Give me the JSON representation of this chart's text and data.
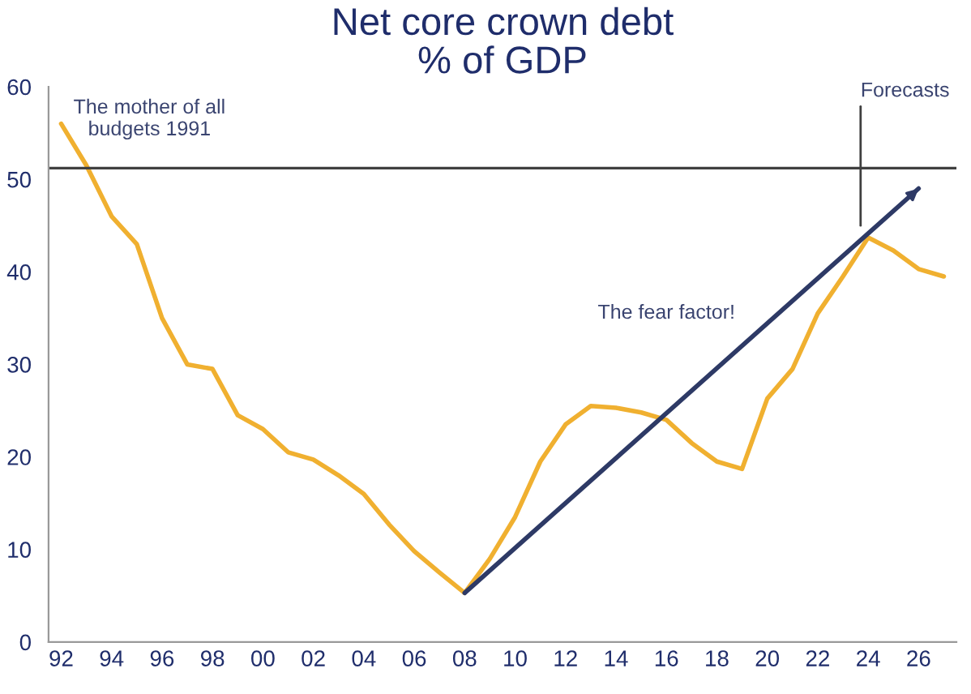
{
  "chart_data": {
    "type": "line",
    "title": "Net core crown debt\n% of GDP",
    "categories": [
      "92",
      null,
      "94",
      null,
      "96",
      null,
      "98",
      null,
      "00",
      null,
      "02",
      null,
      "04",
      null,
      "06",
      null,
      "08",
      null,
      "10",
      null,
      "12",
      null,
      "14",
      null,
      "16",
      null,
      "18",
      null,
      "20",
      null,
      "22",
      null,
      "24",
      null,
      "26",
      null
    ],
    "series": [
      {
        "color": "#f0b030",
        "values": [
          56,
          51.5,
          46,
          43,
          35,
          30,
          29.5,
          24.5,
          23,
          20.5,
          19.7,
          18,
          16,
          12.7,
          9.8,
          7.5,
          5.3,
          9,
          13.5,
          19.5,
          23.5,
          25.5,
          25.3,
          24.8,
          24,
          21.5,
          19.5,
          18.7,
          26.3,
          29.5,
          35.5,
          39.5,
          43.7,
          42.3,
          40.3,
          39.5
        ]
      },
      {
        "type": "line",
        "color": "#2e3a66",
        "x": [
          "08",
          "26"
        ],
        "values": [
          5.3,
          49
        ]
      }
    ],
    "ylim": [
      0,
      60
    ],
    "yticks": [
      0,
      10,
      20,
      30,
      40,
      50,
      60
    ],
    "grid": false,
    "legend": false,
    "ref_lines": [
      {
        "axis": "y",
        "value": 51.2,
        "color": "#404040"
      }
    ],
    "annotations": [
      "The mother of all\nbudgets 1991",
      "The fear factor!",
      {
        "text": "Forecasts",
        "x": "24",
        "y": 45
      }
    ]
  }
}
